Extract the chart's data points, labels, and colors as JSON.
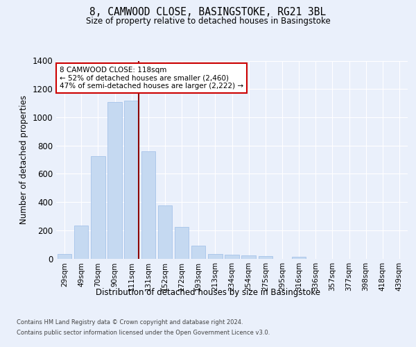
{
  "title_line1": "8, CAMWOOD CLOSE, BASINGSTOKE, RG21 3BL",
  "title_line2": "Size of property relative to detached houses in Basingstoke",
  "xlabel": "Distribution of detached houses by size in Basingstoke",
  "ylabel": "Number of detached properties",
  "categories": [
    "29sqm",
    "49sqm",
    "70sqm",
    "90sqm",
    "111sqm",
    "131sqm",
    "152sqm",
    "172sqm",
    "193sqm",
    "213sqm",
    "234sqm",
    "254sqm",
    "275sqm",
    "295sqm",
    "316sqm",
    "336sqm",
    "357sqm",
    "377sqm",
    "398sqm",
    "418sqm",
    "439sqm"
  ],
  "bar_heights": [
    30,
    235,
    725,
    1110,
    1120,
    760,
    375,
    225,
    90,
    30,
    25,
    20,
    15,
    0,
    10,
    0,
    0,
    0,
    0,
    0,
    0
  ],
  "bar_color": "#c5d9f1",
  "bar_edge_color": "#9bbce8",
  "vline_color": "#8b0000",
  "annotation_text": "8 CAMWOOD CLOSE: 118sqm\n← 52% of detached houses are smaller (2,460)\n47% of semi-detached houses are larger (2,222) →",
  "annotation_box_facecolor": "#ffffff",
  "annotation_box_edgecolor": "#cc0000",
  "ylim": [
    0,
    1400
  ],
  "yticks": [
    0,
    200,
    400,
    600,
    800,
    1000,
    1200,
    1400
  ],
  "bg_color": "#eaf0fb",
  "footer_line1": "Contains HM Land Registry data © Crown copyright and database right 2024.",
  "footer_line2": "Contains public sector information licensed under the Open Government Licence v3.0."
}
